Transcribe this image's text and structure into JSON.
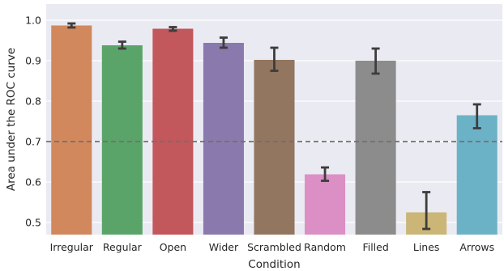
{
  "chart_data": {
    "type": "bar",
    "title": "",
    "xlabel": "Condition",
    "ylabel": "Area under the ROC curve",
    "ylim": [
      0.47,
      1.04
    ],
    "yticks": [
      "0.5",
      "0.6",
      "0.7",
      "0.8",
      "0.9",
      "1.0"
    ],
    "grid": true,
    "reference_line": {
      "value": 0.7,
      "style": "dashed"
    },
    "categories": [
      "Irregular",
      "Regular",
      "Open",
      "Wider",
      "Scrambled",
      "Random",
      "Filled",
      "Lines",
      "Arrows"
    ],
    "values": [
      0.987,
      0.938,
      0.979,
      0.944,
      0.902,
      0.619,
      0.9,
      0.525,
      0.765
    ],
    "error_low": [
      0.982,
      0.93,
      0.974,
      0.932,
      0.875,
      0.603,
      0.868,
      0.484,
      0.733
    ],
    "error_high": [
      0.992,
      0.947,
      0.983,
      0.957,
      0.932,
      0.636,
      0.93,
      0.575,
      0.792
    ],
    "colors": [
      "#d1885c",
      "#5ba469",
      "#c2575c",
      "#8a79ad",
      "#937660",
      "#dc8fc4",
      "#8c8c8c",
      "#cbb677",
      "#6cb2c7"
    ],
    "background_color": "#eaeaf2"
  }
}
